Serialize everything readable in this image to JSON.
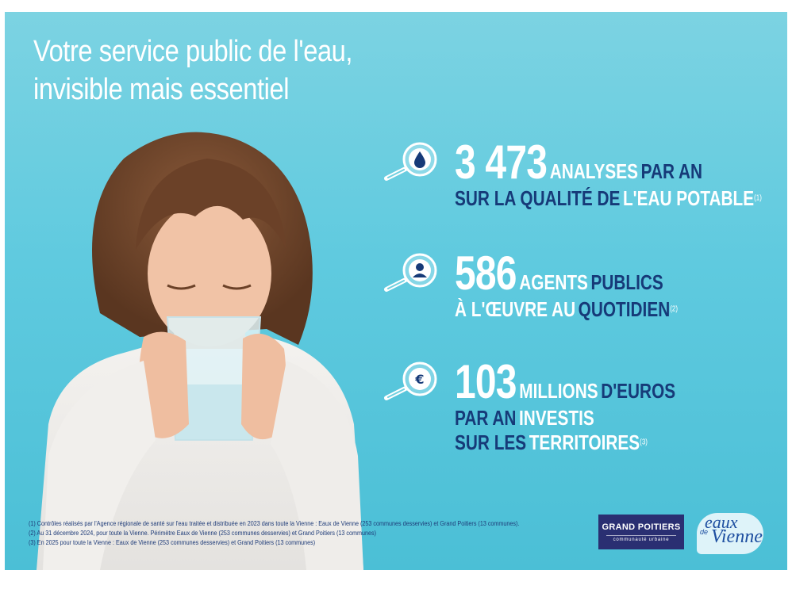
{
  "headline": {
    "line1": "Votre service public de l'eau,",
    "line2": "invisible mais essentiel"
  },
  "stats": [
    {
      "icon": "water-drop-icon",
      "number": "3 473",
      "line1_white": "ANALYSES",
      "line1_navy": "PAR AN",
      "line2_navy": "SUR LA QUALITÉ DE",
      "line2_white": "L'EAU POTABLE",
      "note": "(1)"
    },
    {
      "icon": "person-icon",
      "number": "586",
      "line1_white": "AGENTS",
      "line1_navy": "PUBLICS",
      "line2_white": "À L'ŒUVRE AU",
      "line2_navy": "QUOTIDIEN",
      "note": "(2)"
    },
    {
      "icon": "euro-icon",
      "number": "103",
      "line1_white": "MILLIONS",
      "line1_navy": "D'EUROS",
      "line2_navy": "PAR AN",
      "line2_white": "INVESTIS",
      "line3_navy": "SUR LES",
      "line3_white": "TERRITOIRES",
      "note": "(3)"
    }
  ],
  "footnotes": [
    "(1) Contrôles réalisés par l'Agence régionale de santé sur l'eau traitée et distribuée en 2023 dans toute la Vienne : Eaux de Vienne (253 communes desservies) et Grand Poitiers (13 communes).",
    "(2) Au 31 décembre 2024, pour toute la Vienne. Périmètre Eaux de Vienne (253 communes desservies) et Grand Poitiers (13 communes)",
    "(3) En 2025 pour toute la Vienne : Eaux de Vienne (253 communes desservies) et Grand Poitiers (13 communes)"
  ],
  "logos": {
    "grand_poitiers": {
      "title": "GRAND POITIERS",
      "subtitle": "communauté urbaine"
    },
    "eaux_de_vienne": {
      "word1": "eaux",
      "word2": "de",
      "word3": "Vienne"
    }
  },
  "colors": {
    "accent_navy": "#163a78",
    "background_cyan": "#5fcadf",
    "logo_navy": "#2a2f72"
  }
}
